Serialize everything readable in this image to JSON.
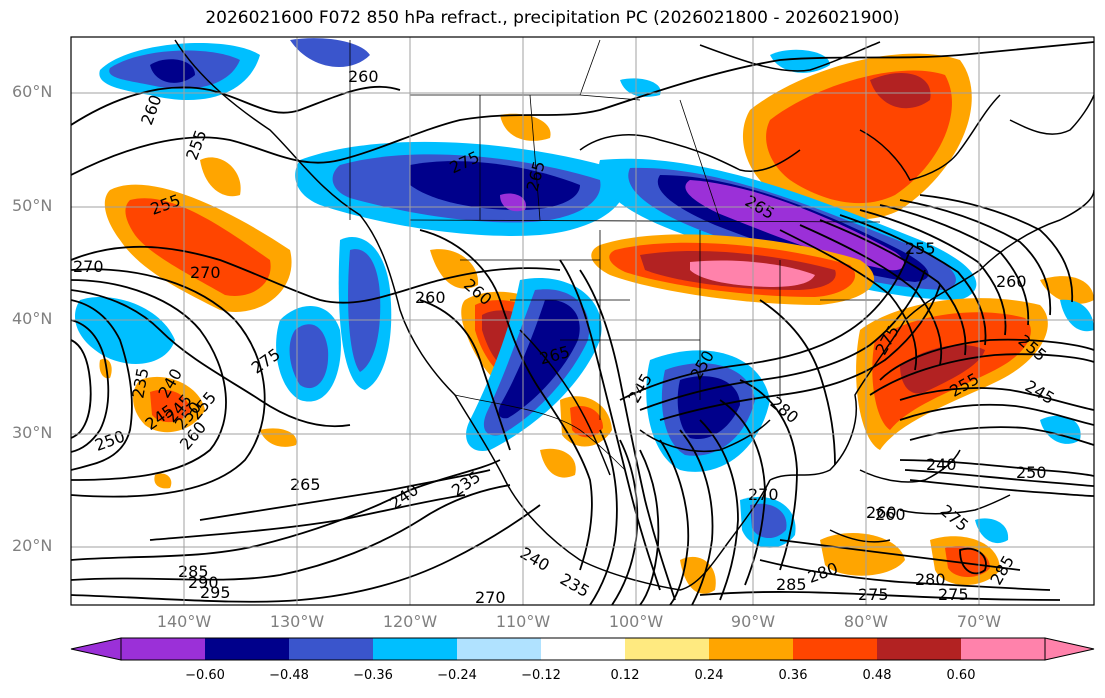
{
  "title": "2026021600 F072 850 hPa refract., precipitation PC (2026021800 - 2026021900)",
  "lat_labels": [
    "60°N",
    "50°N",
    "40°N",
    "30°N",
    "20°N"
  ],
  "lon_labels": [
    "140°W",
    "130°W",
    "120°W",
    "110°W",
    "100°W",
    "90°W",
    "80°W",
    "70°W"
  ],
  "colorbar": {
    "ticks": [
      "−0.60",
      "−0.48",
      "−0.36",
      "−0.24",
      "−0.12",
      "0.12",
      "0.24",
      "0.36",
      "0.48",
      "0.60"
    ],
    "colors": [
      "#9b30d8",
      "#00008b",
      "#3a55cc",
      "#00bfff",
      "#b0e2ff",
      "#ffffff",
      "#ffea80",
      "#ffa500",
      "#ff4500",
      "#b22222",
      "#ff82ab"
    ]
  },
  "contour_labels": [
    "260",
    "260",
    "255",
    "255",
    "275",
    "265",
    "270",
    "270",
    "260",
    "260",
    "265",
    "275",
    "235",
    "240",
    "245",
    "250",
    "255",
    "260",
    "265",
    "240",
    "235",
    "250",
    "245",
    "285",
    "290",
    "295",
    "270",
    "240",
    "235",
    "280",
    "285",
    "275",
    "280",
    "270",
    "260",
    "275",
    "250",
    "245",
    "240",
    "280",
    "285",
    "275",
    "255",
    "260",
    "265",
    "275",
    "260",
    "245",
    "255",
    "250",
    "255"
  ]
}
